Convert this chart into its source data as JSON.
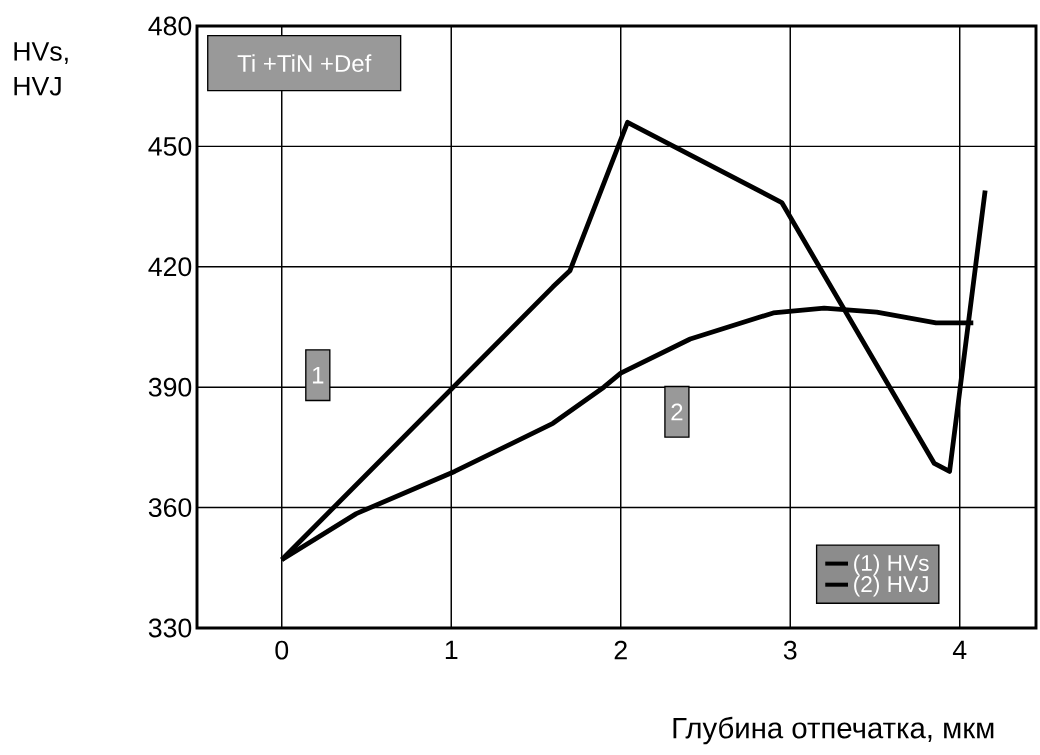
{
  "chart_data": {
    "type": "line",
    "xlabel": "Глубина отпечатка, мкм",
    "ylabel": "HVs,\nHVJ",
    "xlim": [
      -0.5,
      4.45
    ],
    "xticks": [
      0,
      1,
      2,
      3,
      4
    ],
    "ylim": [
      330,
      480
    ],
    "yticks": [
      330,
      360,
      390,
      420,
      450,
      480
    ],
    "grid": true,
    "legend": "bottom right",
    "marker": "none",
    "line_style": "solid",
    "series": [
      {
        "name": "(1) HVs",
        "color": "#000000",
        "x": [
          0,
          1.6,
          1.7,
          2.04,
          2.95,
          3.85,
          3.94,
          4.15
        ],
        "values": [
          347,
          415,
          419,
          456,
          436,
          371,
          369,
          439
        ]
      },
      {
        "name": "(2) HVJ",
        "color": "#000000",
        "x": [
          0,
          0.44,
          1.02,
          1.6,
          1.9,
          2.0,
          2.41,
          2.9,
          3.2,
          3.51,
          3.86,
          4.08
        ],
        "values": [
          347,
          358.5,
          369,
          381,
          390,
          393.5,
          402,
          408.5,
          409.7,
          408.7,
          406,
          406
        ]
      }
    ],
    "annotations": [
      "Ti +TiN +Def",
      "1",
      "2"
    ]
  }
}
